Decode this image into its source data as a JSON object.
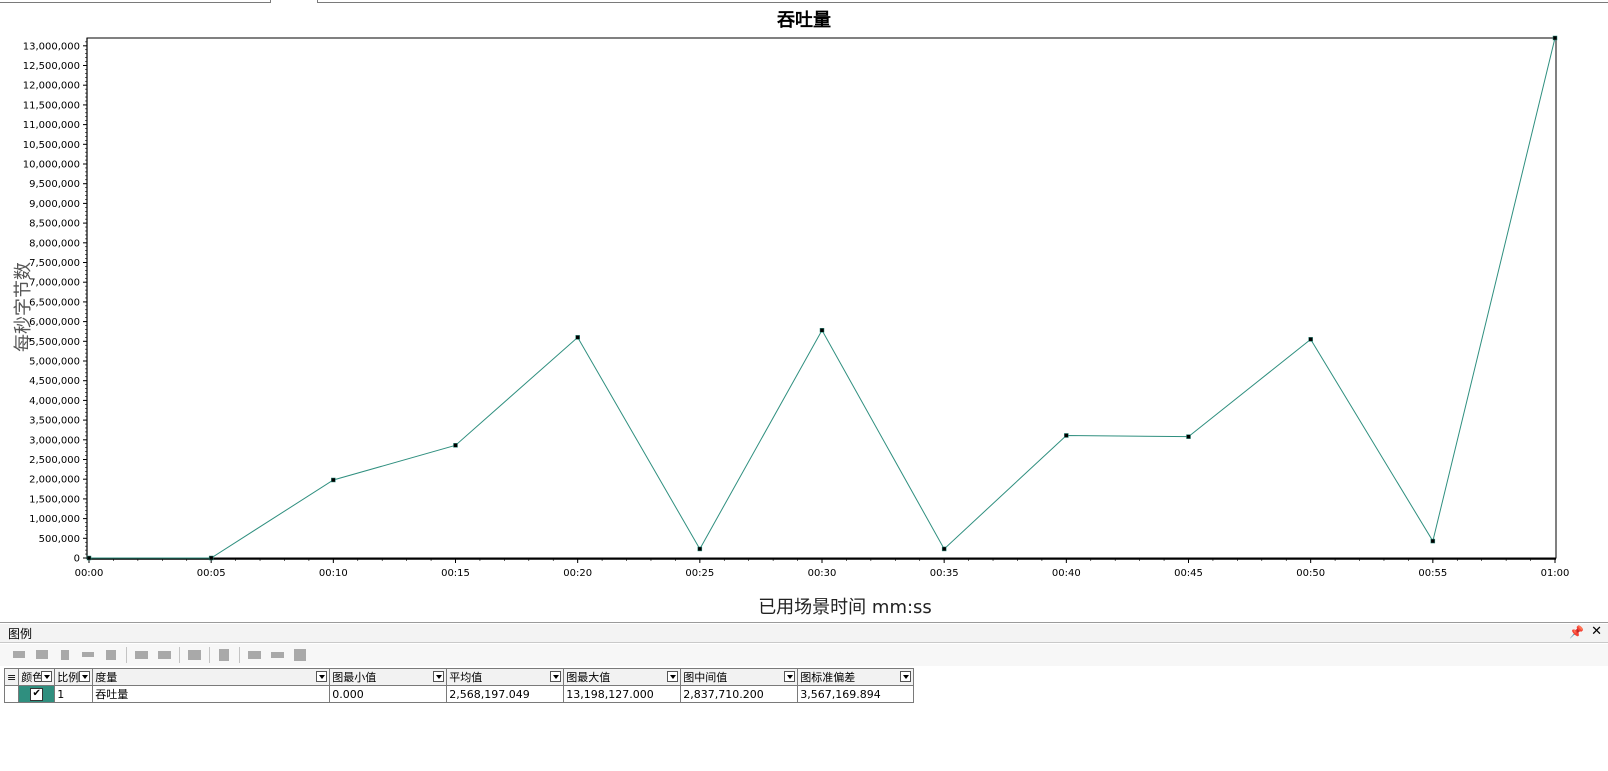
{
  "chart_data": {
    "type": "line",
    "title": "吞吐量",
    "xlabel": "已用场景时间 mm:ss",
    "ylabel": "每秒字节数",
    "categories": [
      "00:00",
      "00:05",
      "00:10",
      "00:15",
      "00:20",
      "00:25",
      "00:30",
      "00:35",
      "00:40",
      "00:45",
      "00:50",
      "00:55",
      "01:00"
    ],
    "series": [
      {
        "name": "吞吐量",
        "color": "#2f8f7f",
        "values": [
          0,
          0,
          1980000,
          2860000,
          5600000,
          230000,
          5780000,
          230000,
          3110000,
          3080000,
          5550000,
          430000,
          13198127
        ]
      }
    ],
    "y_ticks": [
      0,
      500000,
      1000000,
      1500000,
      2000000,
      2500000,
      3000000,
      3500000,
      4000000,
      4500000,
      5000000,
      5500000,
      6000000,
      6500000,
      7000000,
      7500000,
      8000000,
      8500000,
      9000000,
      9500000,
      10000000,
      10500000,
      11000000,
      11500000,
      12000000,
      12500000,
      13000000
    ],
    "y_tick_labels": [
      "0",
      "500,000",
      "1,000,000",
      "1,500,000",
      "2,000,000",
      "2,500,000",
      "3,000,000",
      "3,500,000",
      "4,000,000",
      "4,500,000",
      "5,000,000",
      "5,500,000",
      "6,000,000",
      "6,500,000",
      "7,000,000",
      "7,500,000",
      "8,000,000",
      "8,500,000",
      "9,000,000",
      "9,500,000",
      "10,000,000",
      "10,500,000",
      "11,000,000",
      "11,500,000",
      "12,000,000",
      "12,500,000",
      "13,000,000"
    ],
    "ylim": [
      0,
      13198127
    ],
    "grid": true,
    "legend": "bottom-table"
  },
  "legend_panel": {
    "title": "图例",
    "pin_glyph": "𝟰",
    "close_glyph": "✕",
    "columns": [
      "颜色",
      "比例",
      "度量",
      "图最小值",
      "平均值",
      "图最大值",
      "图中间值",
      "图标准偏差"
    ],
    "rows": [
      {
        "checked": "✔",
        "scale": "1",
        "measure": "吞吐量",
        "min": "0.000",
        "avg": "2,568,197.049",
        "max": "13,198,127.000",
        "median": "2,837,710.200",
        "stddev": "3,567,169.894"
      }
    ]
  }
}
